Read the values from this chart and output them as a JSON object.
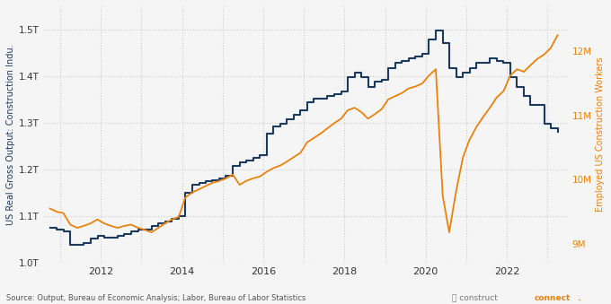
{
  "ylabel_left": "US Real Gross Output: Construction Indu.",
  "ylabel_right": "Employed US Construction Workers",
  "source_text": "Source: Output, Bureau of Economic Analysis; Labor, Bureau of Labor Statistics",
  "background_color": "#f5f5f5",
  "plot_bg_color": "#f5f5f5",
  "grid_color": "#cccccc",
  "line_color_output": "#1b3a5c",
  "line_color_labor": "#e8820c",
  "ylim_left": [
    1000000000000.0,
    1550000000000.0
  ],
  "ylim_right": [
    8700000.0,
    12700000.0
  ],
  "yticks_left": [
    1000000000000.0,
    1100000000000.0,
    1200000000000.0,
    1300000000000.0,
    1400000000000.0,
    1500000000000.0
  ],
  "ytick_labels_left": [
    "1.0T",
    "1.1T",
    "1.2T",
    "1.3T",
    "1.4T",
    "1.5T"
  ],
  "yticks_right": [
    9000000.0,
    10000000.0,
    11000000.0,
    12000000.0
  ],
  "ytick_labels_right": [
    "9M",
    "10M",
    "11M",
    "12M"
  ],
  "xticks": [
    2011,
    2012,
    2013,
    2014,
    2015,
    2016,
    2017,
    2018,
    2019,
    2020,
    2021,
    2022,
    2023
  ],
  "xtick_labels": [
    "",
    "2012",
    "",
    "2014",
    "",
    "2016",
    "",
    "2018",
    "",
    "2020",
    "",
    "2022",
    ""
  ],
  "output_x": [
    2010.75,
    2010.92,
    2011.08,
    2011.25,
    2011.42,
    2011.58,
    2011.75,
    2011.92,
    2012.08,
    2012.25,
    2012.42,
    2012.58,
    2012.75,
    2012.92,
    2013.08,
    2013.25,
    2013.42,
    2013.58,
    2013.75,
    2013.92,
    2014.08,
    2014.25,
    2014.42,
    2014.58,
    2014.75,
    2014.92,
    2015.08,
    2015.25,
    2015.42,
    2015.58,
    2015.75,
    2015.92,
    2016.08,
    2016.25,
    2016.42,
    2016.58,
    2016.75,
    2016.92,
    2017.08,
    2017.25,
    2017.42,
    2017.58,
    2017.75,
    2017.92,
    2018.08,
    2018.25,
    2018.42,
    2018.58,
    2018.75,
    2018.92,
    2019.08,
    2019.25,
    2019.42,
    2019.58,
    2019.75,
    2019.92,
    2020.08,
    2020.25,
    2020.42,
    2020.58,
    2020.75,
    2020.92,
    2021.08,
    2021.25,
    2021.42,
    2021.58,
    2021.75,
    2021.92,
    2022.08,
    2022.25,
    2022.42,
    2022.58,
    2022.92,
    2023.08,
    2023.25
  ],
  "output_y": [
    1075000000000.0,
    1072000000000.0,
    1068000000000.0,
    1040000000000.0,
    1040000000000.0,
    1043000000000.0,
    1052000000000.0,
    1058000000000.0,
    1055000000000.0,
    1055000000000.0,
    1058000000000.0,
    1062000000000.0,
    1068000000000.0,
    1072000000000.0,
    1072000000000.0,
    1080000000000.0,
    1085000000000.0,
    1090000000000.0,
    1095000000000.0,
    1100000000000.0,
    1150000000000.0,
    1168000000000.0,
    1172000000000.0,
    1175000000000.0,
    1178000000000.0,
    1182000000000.0,
    1188000000000.0,
    1208000000000.0,
    1215000000000.0,
    1220000000000.0,
    1225000000000.0,
    1232000000000.0,
    1278000000000.0,
    1292000000000.0,
    1298000000000.0,
    1308000000000.0,
    1318000000000.0,
    1328000000000.0,
    1345000000000.0,
    1352000000000.0,
    1352000000000.0,
    1358000000000.0,
    1362000000000.0,
    1368000000000.0,
    1398000000000.0,
    1408000000000.0,
    1398000000000.0,
    1378000000000.0,
    1388000000000.0,
    1393000000000.0,
    1418000000000.0,
    1428000000000.0,
    1432000000000.0,
    1438000000000.0,
    1442000000000.0,
    1448000000000.0,
    1478000000000.0,
    1498000000000.0,
    1472000000000.0,
    1418000000000.0,
    1398000000000.0,
    1408000000000.0,
    1418000000000.0,
    1428000000000.0,
    1428000000000.0,
    1438000000000.0,
    1432000000000.0,
    1428000000000.0,
    1398000000000.0,
    1378000000000.0,
    1358000000000.0,
    1338000000000.0,
    1298000000000.0,
    1288000000000.0,
    1282000000000.0
  ],
  "labor_x": [
    2010.75,
    2010.92,
    2011.08,
    2011.25,
    2011.42,
    2011.58,
    2011.75,
    2011.92,
    2012.08,
    2012.25,
    2012.42,
    2012.58,
    2012.75,
    2012.92,
    2013.08,
    2013.25,
    2013.42,
    2013.58,
    2013.75,
    2013.92,
    2014.08,
    2014.25,
    2014.42,
    2014.58,
    2014.75,
    2014.92,
    2015.08,
    2015.25,
    2015.42,
    2015.58,
    2015.75,
    2015.92,
    2016.08,
    2016.25,
    2016.42,
    2016.58,
    2016.75,
    2016.92,
    2017.08,
    2017.25,
    2017.42,
    2017.58,
    2017.75,
    2017.92,
    2018.08,
    2018.25,
    2018.42,
    2018.58,
    2018.75,
    2018.92,
    2019.08,
    2019.25,
    2019.42,
    2019.58,
    2019.75,
    2019.92,
    2020.08,
    2020.25,
    2020.42,
    2020.58,
    2020.75,
    2020.92,
    2021.08,
    2021.25,
    2021.42,
    2021.58,
    2021.75,
    2021.92,
    2022.08,
    2022.25,
    2022.42,
    2022.58,
    2022.75,
    2022.92,
    2023.08,
    2023.25
  ],
  "labor_y": [
    9550000.0,
    9500000.0,
    9480000.0,
    9300000.0,
    9250000.0,
    9280000.0,
    9320000.0,
    9380000.0,
    9320000.0,
    9280000.0,
    9250000.0,
    9280000.0,
    9300000.0,
    9250000.0,
    9220000.0,
    9180000.0,
    9250000.0,
    9320000.0,
    9380000.0,
    9420000.0,
    9720000.0,
    9800000.0,
    9850000.0,
    9900000.0,
    9950000.0,
    9980000.0,
    10020000.0,
    10080000.0,
    9920000.0,
    9980000.0,
    10020000.0,
    10050000.0,
    10120000.0,
    10180000.0,
    10220000.0,
    10280000.0,
    10350000.0,
    10420000.0,
    10580000.0,
    10650000.0,
    10720000.0,
    10800000.0,
    10880000.0,
    10950000.0,
    11080000.0,
    11120000.0,
    11050000.0,
    10950000.0,
    11020000.0,
    11100000.0,
    11250000.0,
    11300000.0,
    11350000.0,
    11420000.0,
    11450000.0,
    11500000.0,
    11620000.0,
    11720000.0,
    9750000.0,
    9180000.0,
    9820000.0,
    10350000.0,
    10620000.0,
    10820000.0,
    10980000.0,
    11120000.0,
    11280000.0,
    11380000.0,
    11620000.0,
    11720000.0,
    11680000.0,
    11780000.0,
    11880000.0,
    11950000.0,
    12050000.0,
    12250000.0
  ]
}
